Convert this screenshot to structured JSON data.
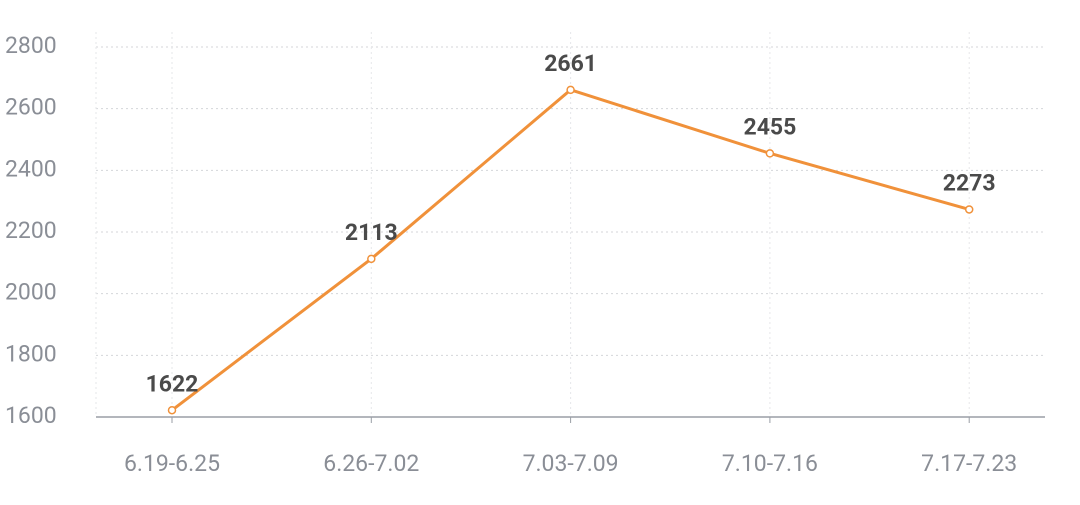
{
  "chart_data": {
    "type": "line",
    "categories": [
      "6.19-6.25",
      "6.26-7.02",
      "7.03-7.09",
      "7.10-7.16",
      "7.17-7.23"
    ],
    "series": [
      {
        "color": "#f0913a",
        "values": [
          1622,
          2113,
          2661,
          2455,
          2273
        ]
      }
    ],
    "ylim": [
      1600,
      2800
    ],
    "yticks": [
      1600,
      1800,
      2000,
      2200,
      2400,
      2600,
      2800
    ],
    "grid": true
  }
}
